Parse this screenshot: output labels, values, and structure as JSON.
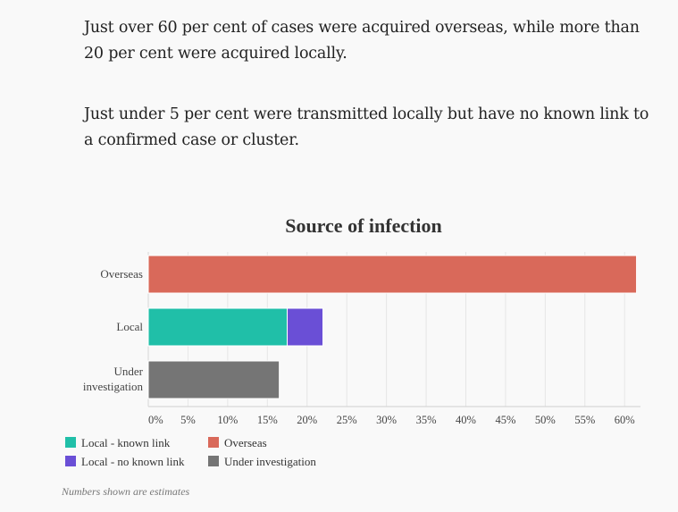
{
  "article": {
    "paragraphs": [
      "Just over 60 per cent of cases were acquired overseas, while more than 20 per cent were acquired locally.",
      "Just under 5 per cent were transmitted locally but have no known link to a confirmed case or cluster."
    ]
  },
  "chart_data": {
    "type": "bar",
    "orientation": "horizontal",
    "stacked": true,
    "title": "Source of infection",
    "categories": [
      "Overseas",
      "Local",
      "Under investigation"
    ],
    "series": [
      {
        "name": "Local - known link",
        "color": "#20bfa8",
        "values": [
          0,
          17.5,
          0
        ]
      },
      {
        "name": "Local - no known link",
        "color": "#6a4fd6",
        "values": [
          0,
          4.5,
          0
        ]
      },
      {
        "name": "Overseas",
        "color": "#d9695a",
        "values": [
          61.5,
          0,
          0
        ]
      },
      {
        "name": "Under investigation",
        "color": "#757575",
        "values": [
          0,
          0,
          16.5
        ]
      }
    ],
    "xlim": [
      0,
      62
    ],
    "xticks": [
      "0%",
      "5%",
      "10%",
      "15%",
      "20%",
      "25%",
      "30%",
      "35%",
      "40%",
      "45%",
      "50%",
      "55%",
      "60%"
    ],
    "grid": true,
    "legend_position": "bottom-left"
  },
  "footnote": "Numbers shown are estimates"
}
